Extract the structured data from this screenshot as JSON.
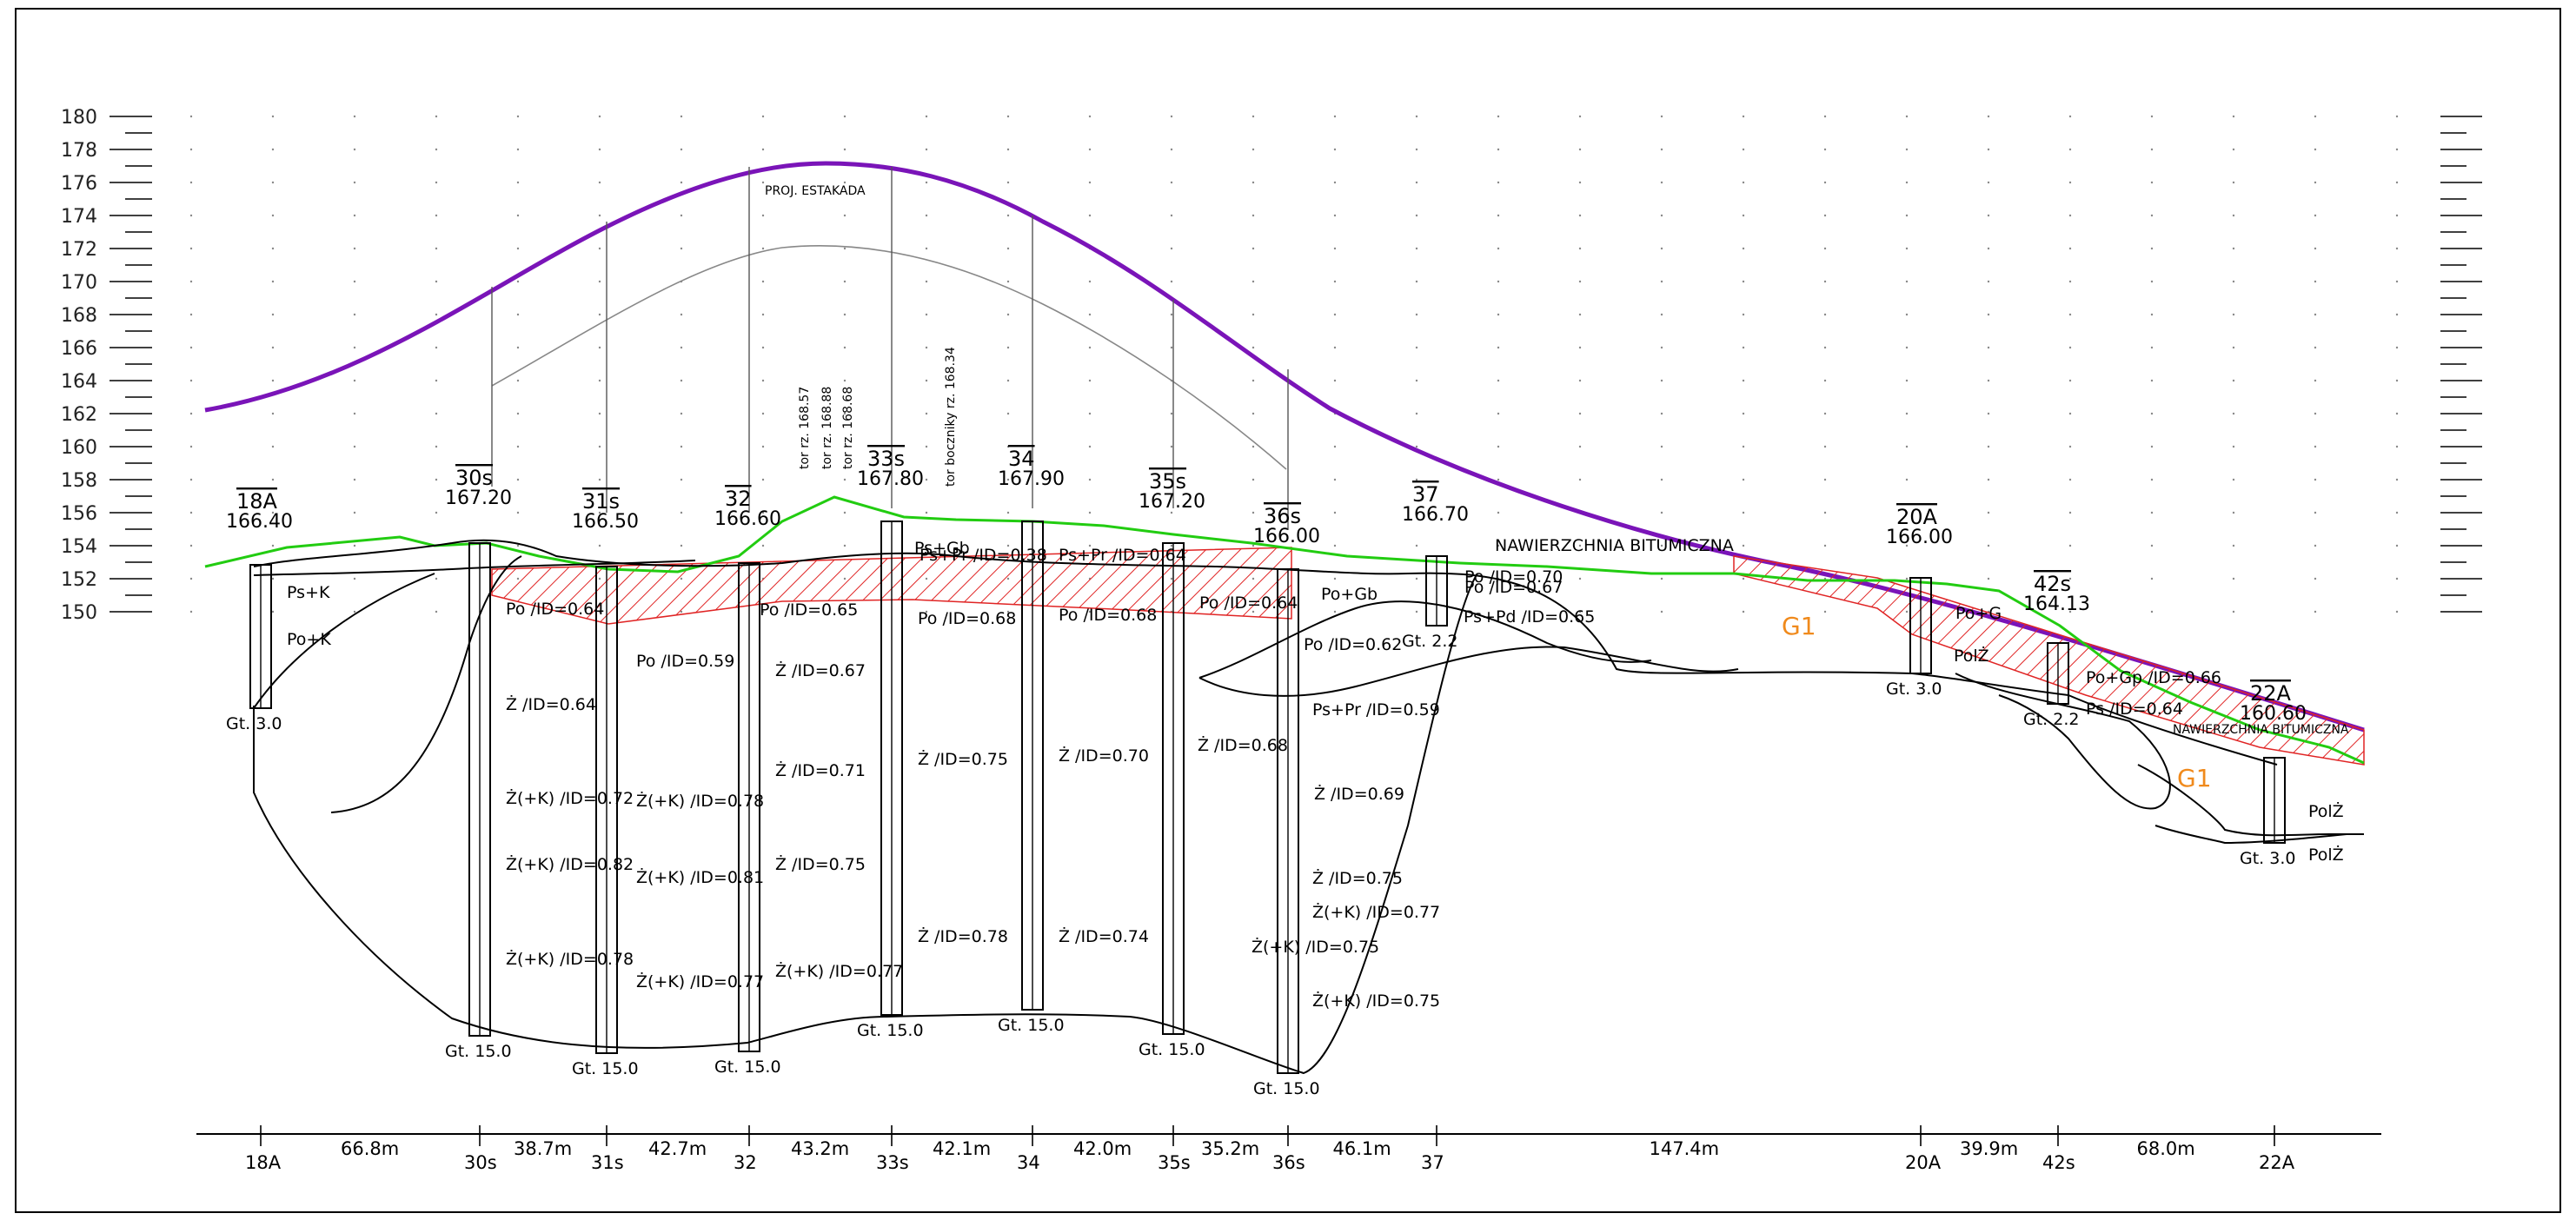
{
  "y_axis": {
    "ticks": [
      "180",
      "178",
      "176",
      "174",
      "172",
      "170",
      "168",
      "166",
      "164",
      "162",
      "160",
      "158",
      "156",
      "154",
      "152",
      "150"
    ]
  },
  "boreholes": [
    {
      "name": "18A",
      "elev": "166.40",
      "depth": "Gt. 3.0"
    },
    {
      "name": "30s",
      "elev": "167.20",
      "depth": "Gt. 15.0"
    },
    {
      "name": "31s",
      "elev": "166.50",
      "depth": "Gt. 15.0"
    },
    {
      "name": "32",
      "elev": "166.60",
      "depth": "Gt. 15.0"
    },
    {
      "name": "33s",
      "elev": "167.80",
      "depth": "Gt. 15.0"
    },
    {
      "name": "34",
      "elev": "167.90",
      "depth": "Gt. 15.0"
    },
    {
      "name": "35s",
      "elev": "167.20",
      "depth": "Gt. 15.0"
    },
    {
      "name": "36s",
      "elev": "166.00",
      "depth": "Gt. 15.0"
    },
    {
      "name": "37",
      "elev": "166.70",
      "depth": "Gt. 2.2"
    },
    {
      "name": "20A",
      "elev": "166.00",
      "depth": "Gt. 3.0"
    },
    {
      "name": "42s",
      "elev": "164.13",
      "depth": "Gt. 2.2"
    },
    {
      "name": "22A",
      "elev": "160.60",
      "depth": "Gt. 3.0"
    }
  ],
  "distances": [
    "66.8m",
    "38.7m",
    "42.7m",
    "43.2m",
    "42.1m",
    "42.0m",
    "35.2m",
    "46.1m",
    "147.4m",
    "39.9m",
    "68.0m"
  ],
  "bottom_labels": [
    "18A",
    "30s",
    "31s",
    "32",
    "33s",
    "34",
    "35s",
    "36s",
    "37",
    "20A",
    "42s",
    "22A"
  ],
  "annotations": {
    "estakada": "PROJ. ESTAKADA",
    "nawierzchnia1": "NAWIERZCHNIA  BITUMICZNA",
    "nawierzchnia2": "NAWIERZCHNIA  BITUMICZNA",
    "g1a": "G1",
    "g1b": "G1",
    "tor1": "tor rz. 168.57",
    "tor2": "tor rz. 168.88",
    "tor3": "tor rz. 168.68",
    "tor4": "tor boczniky rz. 168.34"
  },
  "soil_labels": [
    "Ps+K",
    "Po+K",
    "Po /ID=0.64",
    "Po /ID=0.59",
    "Ż /ID=0.64",
    "Ż(+K) /ID=0.72",
    "Ż(+K) /ID=0.78",
    "Ż(+K) /ID=0.82",
    "Ż(+K) /ID=0.81",
    "Ż(+K) /ID=0.78",
    "Ż(+K) /ID=0.77",
    "Po /ID=0.65",
    "Ż /ID=0.67",
    "Ż /ID=0.71",
    "Ż /ID=0.75",
    "Ż(+K) /ID=0.77",
    "Ps+Pr /ID=0.38",
    "Ps+Pr /ID=0.64",
    "Po /ID=0.68",
    "Ż /ID=0.75",
    "Ż /ID=0.78",
    "Po /ID=0.68",
    "Ż /ID=0.70",
    "Ż /ID=0.74",
    "Po /ID=0.64",
    "Po /ID=0.62",
    "Ps+Pr /ID=0.59",
    "Ż /ID=0.68",
    "Ż /ID=0.69",
    "Ż /ID=0.75",
    "Ż(+K) /ID=0.77",
    "Ż(+K) /ID=0.75",
    "Ż(+K) /ID=0.75",
    "Ps+Pd /ID=0.65",
    "Po /ID=0.67",
    "Po /ID=0.70",
    "PolŻ",
    "Po+G",
    "Po+Gp /ID=0.66",
    "Ps /ID=0.64",
    "PolŻ",
    "PolŻ",
    "Po+Gb",
    "Ps+Gb"
  ],
  "colors": {
    "purple": "#7a14b8",
    "green": "#22cc11",
    "red": "#e02424",
    "orange": "#f08a1c"
  }
}
